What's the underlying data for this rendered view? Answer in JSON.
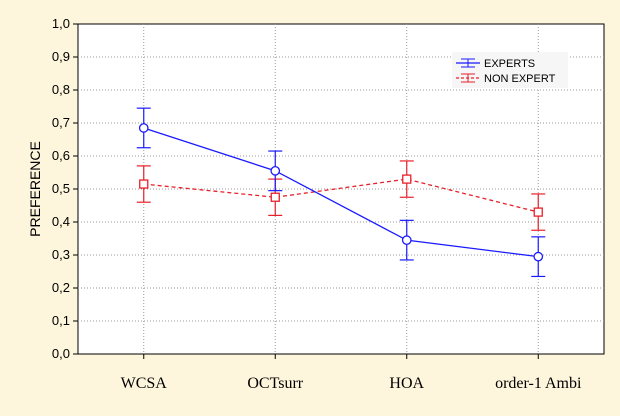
{
  "chart_data": {
    "type": "line",
    "title": "",
    "xlabel": "",
    "ylabel": "PREFERENCE",
    "categories": [
      "WCSA",
      "OCTsurr",
      "HOA",
      "order-1 Ambi"
    ],
    "ylim": [
      0.0,
      1.0
    ],
    "yticks": [
      "0,0",
      "0,1",
      "0,2",
      "0,3",
      "0,4",
      "0,5",
      "0,6",
      "0,7",
      "0,8",
      "0,9",
      "1,0"
    ],
    "grid": true,
    "legend_position": "top-right",
    "series": [
      {
        "name": "EXPERTS",
        "color": "#1a1aff",
        "line_style": "solid",
        "marker": "circle",
        "values": [
          0.685,
          0.555,
          0.345,
          0.295
        ],
        "error_low": [
          0.625,
          0.495,
          0.285,
          0.235
        ],
        "error_high": [
          0.745,
          0.615,
          0.405,
          0.355
        ]
      },
      {
        "name": "NON EXPERT",
        "color": "#e8202a",
        "line_style": "dashed",
        "marker": "square",
        "values": [
          0.515,
          0.475,
          0.53,
          0.43
        ],
        "error_low": [
          0.46,
          0.42,
          0.475,
          0.375
        ],
        "error_high": [
          0.57,
          0.53,
          0.585,
          0.485
        ]
      }
    ]
  }
}
